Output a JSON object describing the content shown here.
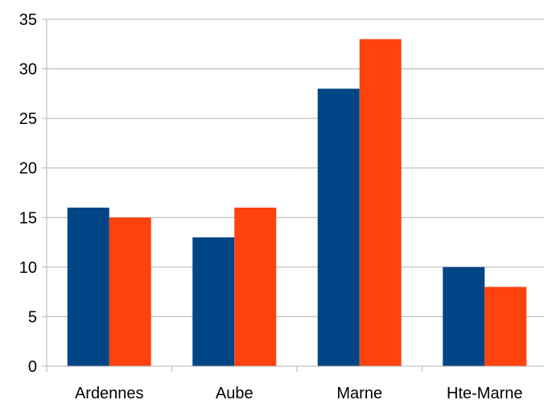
{
  "chart_data": {
    "type": "bar",
    "categories": [
      "Ardennes",
      "Aube",
      "Marne",
      "Hte-Marne"
    ],
    "series": [
      {
        "values": [
          16,
          13,
          28,
          10
        ],
        "color": "#004586"
      },
      {
        "values": [
          15,
          16,
          33,
          8
        ],
        "color": "#ff420e"
      }
    ],
    "ylim": [
      0,
      35
    ],
    "yticks": [
      0,
      5,
      10,
      15,
      20,
      25,
      30,
      35
    ],
    "grid": true,
    "grid_color": "#b3b3b3",
    "legend": "none"
  }
}
